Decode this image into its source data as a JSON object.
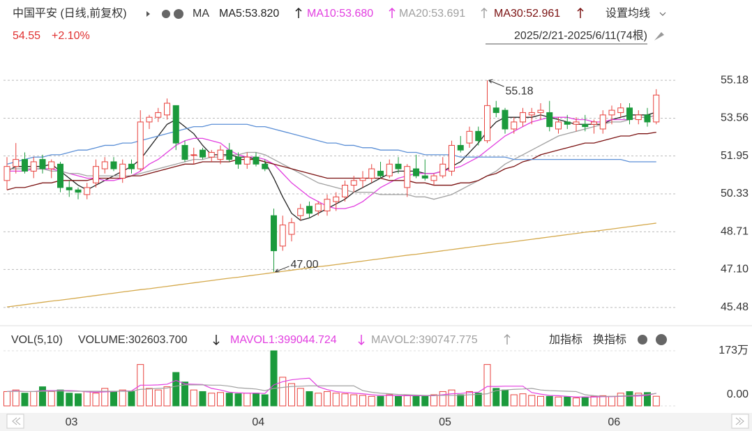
{
  "chart_data": {
    "type": "candlestick",
    "title": "中国平安 (日线,前复权)",
    "ma_label": "MA",
    "last_price": "54.55",
    "change": "+2.10%",
    "range": "2025/2/21-2025/6/11(74根)",
    "buttons": [
      "设置均线",
      "加指标",
      "换指标"
    ],
    "max_label": "55.18",
    "min_label": "47.00",
    "up_color": "#e8413c",
    "down_color": "#1b9a3c",
    "ylim": [
      44.76,
      55.63
    ],
    "yticks": [
      55.18,
      53.56,
      51.95,
      50.33,
      48.71,
      {
        "value": 47.1,
        "label": "47.10"
      },
      45.48
    ],
    "grid": true,
    "categories": [
      null,
      null,
      null,
      null,
      null,
      null,
      "03",
      null,
      null,
      null,
      null,
      null,
      null,
      null,
      null,
      null,
      null,
      null,
      null,
      null,
      null,
      null,
      null,
      null,
      null,
      null,
      null,
      "04",
      null,
      null,
      null,
      null,
      null,
      null,
      null,
      null,
      null,
      null,
      null,
      null,
      null,
      null,
      null,
      null,
      null,
      null,
      null,
      null,
      "05",
      null,
      null,
      null,
      null,
      null,
      null,
      null,
      null,
      null,
      null,
      null,
      null,
      null,
      null,
      null,
      null,
      null,
      null,
      "06",
      null,
      null,
      null,
      null,
      null,
      null
    ],
    "open": [
      50.9,
      51.5,
      51.8,
      51.3,
      51.8,
      51.4,
      51.6,
      50.6,
      50.5,
      50.3,
      50.8,
      51.4,
      51.7,
      51.0,
      51.6,
      51.4,
      53.4,
      53.6,
      53.7,
      54.1,
      52.4,
      52.0,
      52.2,
      51.9,
      51.8,
      52.2,
      51.9,
      51.6,
      51.9,
      51.6,
      49.4,
      48.1,
      48.6,
      49.4,
      49.8,
      49.6,
      49.6,
      50.0,
      50.2,
      50.7,
      50.9,
      51.0,
      51.3,
      51.1,
      51.6,
      50.6,
      51.4,
      51.1,
      50.9,
      51.1,
      51.3,
      52.4,
      52.5,
      53.0,
      52.6,
      54.0,
      53.9,
      53.1,
      53.4,
      53.7,
      53.8,
      53.8,
      53.1,
      53.4,
      53.3,
      53.3,
      53.3,
      53.1,
      53.7,
      53.8,
      54.0,
      53.5,
      53.7,
      53.4
    ],
    "high": [
      51.9,
      52.5,
      52.1,
      51.9,
      52.0,
      51.8,
      51.7,
      50.9,
      50.6,
      50.8,
      51.8,
      51.9,
      51.9,
      51.8,
      51.8,
      53.9,
      53.7,
      54.0,
      54.4,
      54.1,
      52.6,
      52.3,
      52.3,
      52.2,
      52.4,
      52.5,
      52.1,
      52.1,
      52.1,
      51.8,
      49.7,
      49.4,
      49.3,
      49.9,
      50.0,
      50.0,
      50.3,
      50.4,
      50.9,
      51.1,
      51.3,
      51.6,
      51.7,
      51.8,
      51.9,
      51.6,
      52.0,
      51.8,
      51.2,
      51.9,
      52.6,
      52.8,
      53.2,
      53.2,
      55.18,
      54.3,
      54.0,
      53.6,
      54.0,
      54.0,
      54.2,
      54.3,
      53.6,
      53.7,
      53.6,
      53.7,
      53.5,
      53.9,
      54.1,
      54.2,
      54.2,
      53.9,
      54.0,
      54.8
    ],
    "low": [
      50.5,
      51.2,
      51.2,
      51.0,
      51.2,
      51.0,
      50.4,
      50.2,
      50.1,
      50.1,
      50.6,
      51.2,
      51.3,
      50.8,
      51.2,
      51.3,
      53.1,
      53.4,
      53.5,
      52.2,
      51.7,
      51.6,
      51.8,
      51.7,
      51.6,
      51.7,
      51.4,
      51.4,
      51.5,
      51.3,
      47.0,
      47.9,
      48.3,
      49.2,
      49.3,
      49.4,
      49.4,
      49.6,
      50.0,
      50.4,
      50.6,
      50.8,
      51.0,
      51.0,
      51.2,
      50.2,
      51.0,
      50.9,
      50.7,
      51.0,
      51.1,
      52.1,
      52.3,
      52.4,
      52.5,
      53.6,
      52.9,
      52.9,
      53.2,
      53.3,
      53.5,
      53.0,
      52.9,
      53.1,
      53.0,
      53.0,
      52.9,
      52.9,
      53.3,
      53.6,
      53.3,
      53.3,
      53.2,
      53.3
    ],
    "close": [
      51.5,
      51.8,
      51.3,
      51.7,
      51.4,
      51.7,
      50.6,
      50.5,
      50.4,
      50.6,
      51.5,
      51.7,
      51.4,
      51.6,
      51.4,
      53.4,
      53.6,
      53.8,
      54.2,
      52.5,
      51.8,
      52.0,
      51.9,
      52.1,
      52.2,
      51.8,
      51.6,
      51.9,
      51.6,
      51.4,
      47.9,
      49.0,
      49.1,
      49.7,
      49.5,
      49.9,
      50.1,
      50.2,
      50.7,
      50.9,
      51.0,
      51.4,
      51.1,
      51.6,
      51.4,
      51.5,
      51.1,
      51.0,
      51.1,
      51.6,
      52.4,
      52.2,
      53.0,
      52.6,
      54.1,
      53.8,
      53.1,
      53.4,
      53.8,
      53.8,
      53.9,
      53.2,
      53.4,
      53.3,
      53.4,
      53.2,
      53.4,
      53.7,
      53.9,
      54.0,
      53.5,
      53.7,
      53.4,
      54.55
    ],
    "ma_lines": [
      {
        "name": "MA5:53.820",
        "color": "#222222",
        "values": [
          51.3,
          51.5,
          51.5,
          51.5,
          51.5,
          51.6,
          51.3,
          51.0,
          50.7,
          50.5,
          50.7,
          50.9,
          51.1,
          51.3,
          51.5,
          51.8,
          52.3,
          52.8,
          53.3,
          53.5,
          53.2,
          52.9,
          52.4,
          52.0,
          52.0,
          52.0,
          51.9,
          51.9,
          51.8,
          51.7,
          51.0,
          50.2,
          49.5,
          49.2,
          49.3,
          49.5,
          49.7,
          49.9,
          50.1,
          50.4,
          50.6,
          50.8,
          51.0,
          51.2,
          51.3,
          51.3,
          51.3,
          51.2,
          51.2,
          51.3,
          51.5,
          51.7,
          52.1,
          52.5,
          53.0,
          53.4,
          53.6,
          53.6,
          53.6,
          53.6,
          53.7,
          53.6,
          53.5,
          53.4,
          53.3,
          53.3,
          53.3,
          53.3,
          53.5,
          53.6,
          53.7,
          53.7,
          53.7,
          53.82
        ]
      },
      {
        "name": "MA10:53.680",
        "color": "#e23ee0",
        "values": [
          51.3,
          51.3,
          51.3,
          51.4,
          51.4,
          51.4,
          51.3,
          51.2,
          51.1,
          51.0,
          51.0,
          50.9,
          50.9,
          51.0,
          51.1,
          51.3,
          51.6,
          51.8,
          52.1,
          52.4,
          52.6,
          52.7,
          52.7,
          52.6,
          52.5,
          52.2,
          52.0,
          51.9,
          51.9,
          51.8,
          51.6,
          51.2,
          50.8,
          50.5,
          50.2,
          50.0,
          49.8,
          49.7,
          49.7,
          49.8,
          50.0,
          50.3,
          50.6,
          50.8,
          51.0,
          51.1,
          51.2,
          51.2,
          51.2,
          51.3,
          51.4,
          51.5,
          51.7,
          51.9,
          52.2,
          52.5,
          52.8,
          53.0,
          53.2,
          53.4,
          53.5,
          53.6,
          53.6,
          53.6,
          53.5,
          53.5,
          53.4,
          53.4,
          53.5,
          53.5,
          53.5,
          53.6,
          53.6,
          53.68
        ]
      },
      {
        "name": "MA20:53.691",
        "color": "#a0a0a0",
        "values": [
          51.4,
          51.4,
          51.4,
          51.4,
          51.4,
          51.3,
          51.3,
          51.2,
          51.2,
          51.1,
          51.1,
          51.1,
          51.1,
          51.1,
          51.1,
          51.2,
          51.3,
          51.4,
          51.5,
          51.6,
          51.7,
          51.8,
          51.8,
          51.9,
          51.9,
          52.0,
          52.0,
          52.1,
          52.1,
          52.0,
          51.8,
          51.6,
          51.4,
          51.2,
          51.0,
          50.8,
          50.7,
          50.6,
          50.5,
          50.4,
          50.4,
          50.4,
          50.3,
          50.3,
          50.3,
          50.3,
          50.2,
          50.2,
          50.1,
          50.2,
          50.3,
          50.5,
          50.7,
          50.9,
          51.1,
          51.3,
          51.6,
          51.8,
          52.0,
          52.2,
          52.4,
          52.6,
          52.8,
          52.9,
          53.0,
          53.1,
          53.2,
          53.3,
          53.4,
          53.4,
          53.5,
          53.6,
          53.6,
          53.691
        ]
      },
      {
        "name": "MA30:52.961",
        "color": "#7a1010",
        "values": [
          50.5,
          50.6,
          50.6,
          50.7,
          50.8,
          50.8,
          50.9,
          50.9,
          50.9,
          50.9,
          51.0,
          51.0,
          51.0,
          51.0,
          51.1,
          51.1,
          51.2,
          51.3,
          51.4,
          51.5,
          51.6,
          51.6,
          51.7,
          51.7,
          51.7,
          51.7,
          51.8,
          51.8,
          51.8,
          51.7,
          51.6,
          51.5,
          51.4,
          51.3,
          51.2,
          51.1,
          51.0,
          51.0,
          51.0,
          51.0,
          51.0,
          51.0,
          51.0,
          50.9,
          50.9,
          50.9,
          50.8,
          50.8,
          50.7,
          50.7,
          50.7,
          50.8,
          50.8,
          50.9,
          51.1,
          51.2,
          51.4,
          51.5,
          51.7,
          51.8,
          52.0,
          52.1,
          52.2,
          52.3,
          52.4,
          52.5,
          52.5,
          52.6,
          52.7,
          52.8,
          52.8,
          52.9,
          52.9,
          52.961
        ]
      },
      {
        "color": "#5b8fd6",
        "values": [
          51.6,
          51.7,
          51.8,
          51.9,
          51.9,
          52.0,
          52.0,
          52.1,
          52.2,
          52.2,
          52.3,
          52.4,
          52.4,
          52.5,
          52.5,
          52.6,
          52.7,
          52.8,
          52.9,
          53.0,
          53.1,
          53.2,
          53.2,
          53.3,
          53.3,
          53.3,
          53.3,
          53.3,
          53.2,
          53.2,
          53.1,
          53.0,
          52.9,
          52.8,
          52.7,
          52.6,
          52.5,
          52.5,
          52.4,
          52.4,
          52.3,
          52.3,
          52.2,
          52.2,
          52.2,
          52.1,
          52.1,
          52.0,
          52.0,
          52.0,
          52.0,
          51.9,
          51.9,
          51.9,
          51.9,
          51.9,
          51.9,
          51.8,
          51.8,
          51.8,
          51.8,
          51.8,
          51.8,
          51.8,
          51.8,
          51.8,
          51.8,
          51.8,
          51.8,
          51.8,
          51.7,
          51.7,
          51.7,
          51.7
        ]
      },
      {
        "color": "#d4a84a",
        "values": [
          45.5,
          45.55,
          45.6,
          45.65,
          45.7,
          45.75,
          45.79,
          45.84,
          45.89,
          45.94,
          45.99,
          46.04,
          46.09,
          46.14,
          46.19,
          46.24,
          46.28,
          46.33,
          46.38,
          46.43,
          46.48,
          46.53,
          46.58,
          46.63,
          46.68,
          46.73,
          46.77,
          46.82,
          46.87,
          46.92,
          46.97,
          47.02,
          47.07,
          47.12,
          47.17,
          47.22,
          47.26,
          47.31,
          47.36,
          47.41,
          47.46,
          47.51,
          47.56,
          47.61,
          47.66,
          47.71,
          47.75,
          47.8,
          47.85,
          47.9,
          47.95,
          48.0,
          48.05,
          48.1,
          48.15,
          48.2,
          48.24,
          48.29,
          48.34,
          48.39,
          48.44,
          48.49,
          48.54,
          48.59,
          48.64,
          48.69,
          48.73,
          48.78,
          48.83,
          48.88,
          48.93,
          48.98,
          49.03,
          49.08
        ]
      }
    ],
    "volume": {
      "label": "VOL(5,10)",
      "current": "VOLUME:302603.700",
      "ylim": [
        0,
        1730000
      ],
      "yticks": [
        {
          "value": 1730000,
          "label": "173万"
        },
        {
          "value": 0,
          "label": "0.00"
        }
      ],
      "values": [
        450000,
        500000,
        400000,
        450000,
        600000,
        450000,
        500000,
        400000,
        380000,
        450000,
        400000,
        550000,
        450000,
        500000,
        450000,
        1300000,
        550000,
        500000,
        600000,
        1050000,
        750000,
        500000,
        450000,
        400000,
        420000,
        400000,
        380000,
        400000,
        400000,
        350000,
        1730000,
        900000,
        700000,
        550000,
        450000,
        400000,
        450000,
        400000,
        380000,
        350000,
        330000,
        300000,
        300000,
        350000,
        300000,
        330000,
        300000,
        300000,
        350000,
        450000,
        500000,
        350000,
        450000,
        400000,
        1300000,
        550000,
        500000,
        350000,
        380000,
        330000,
        300000,
        300000,
        280000,
        280000,
        250000,
        280000,
        300000,
        320000,
        300000,
        400000,
        450000,
        400000,
        420000,
        302603.7
      ],
      "lines": [
        {
          "name": "MAVOL1:399044.724",
          "color": "#e23ee0",
          "values": [
            450000,
            470000,
            450000,
            450000,
            480000,
            480000,
            480000,
            480000,
            470000,
            440000,
            430000,
            440000,
            450000,
            470000,
            470000,
            650000,
            650000,
            660000,
            680000,
            800000,
            690000,
            680000,
            670000,
            550000,
            500000,
            430000,
            410000,
            400000,
            400000,
            390000,
            660000,
            760000,
            820000,
            850000,
            870000,
            600000,
            510000,
            450000,
            420000,
            400000,
            380000,
            350000,
            330000,
            330000,
            320000,
            320000,
            320000,
            320000,
            320000,
            350000,
            380000,
            390000,
            420000,
            430000,
            610000,
            610000,
            620000,
            620000,
            620000,
            420000,
            370000,
            330000,
            320000,
            300000,
            280000,
            280000,
            280000,
            290000,
            290000,
            300000,
            310000,
            310000,
            330000,
            399044.724
          ]
        },
        {
          "name": "MAVOL2:390747.775",
          "color": "#a0a0a0",
          "values": [
            450000,
            460000,
            450000,
            450000,
            460000,
            460000,
            470000,
            460000,
            460000,
            460000,
            460000,
            460000,
            460000,
            460000,
            460000,
            520000,
            530000,
            550000,
            560000,
            620000,
            660000,
            660000,
            660000,
            650000,
            650000,
            620000,
            570000,
            550000,
            530000,
            480000,
            550000,
            580000,
            610000,
            620000,
            630000,
            630000,
            630000,
            630000,
            630000,
            630000,
            480000,
            430000,
            400000,
            380000,
            360000,
            350000,
            340000,
            330000,
            330000,
            330000,
            330000,
            330000,
            350000,
            360000,
            380000,
            480000,
            500000,
            520000,
            530000,
            550000,
            500000,
            480000,
            470000,
            460000,
            450000,
            350000,
            320000,
            300000,
            300000,
            310000,
            320000,
            340000,
            360000,
            390747.775
          ]
        }
      ]
    }
  }
}
